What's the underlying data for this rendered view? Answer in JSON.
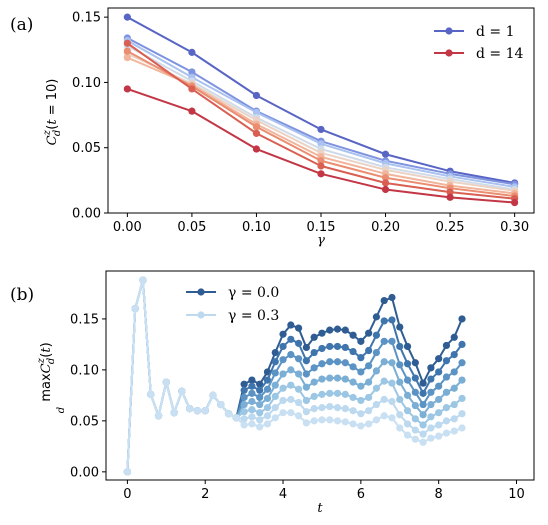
{
  "chart_data": [
    {
      "type": "line",
      "panel_label": "(a)",
      "xlabel": "γ",
      "ylabel": "C^z_d(t = 10)",
      "xlim": [
        -0.015,
        0.315
      ],
      "ylim": [
        0.0,
        0.157
      ],
      "x_ticks": [
        "0.00",
        "0.05",
        "0.10",
        "0.15",
        "0.20",
        "0.25",
        "0.30"
      ],
      "y_ticks": [
        "0.00",
        "0.05",
        "0.10",
        "0.15"
      ],
      "x": [
        0.0,
        0.05,
        0.1,
        0.15,
        0.2,
        0.25,
        0.3
      ],
      "legend": {
        "placement": "top-right",
        "entries": [
          "d = 1",
          "d = 14"
        ]
      },
      "colormap": [
        "#5865c4",
        "#7f93e0",
        "#a9c2f0",
        "#d0dbea",
        "#ead3c5",
        "#f2b49a",
        "#ea8d70",
        "#d85f52",
        "#c23645"
      ],
      "series": [
        {
          "name": "d = 1",
          "values": [
            0.15,
            0.123,
            0.09,
            0.064,
            0.045,
            0.032,
            0.023
          ]
        },
        {
          "values": [
            0.134,
            0.108,
            0.078,
            0.055,
            0.04,
            0.03,
            0.022
          ]
        },
        {
          "values": [
            0.132,
            0.104,
            0.077,
            0.053,
            0.038,
            0.028,
            0.02
          ]
        },
        {
          "values": [
            0.128,
            0.101,
            0.073,
            0.049,
            0.035,
            0.026,
            0.018
          ]
        },
        {
          "values": [
            0.122,
            0.099,
            0.071,
            0.046,
            0.033,
            0.024,
            0.017
          ]
        },
        {
          "values": [
            0.119,
            0.098,
            0.068,
            0.043,
            0.03,
            0.021,
            0.015
          ]
        },
        {
          "values": [
            0.124,
            0.097,
            0.066,
            0.04,
            0.027,
            0.019,
            0.013
          ]
        },
        {
          "values": [
            0.13,
            0.095,
            0.061,
            0.036,
            0.023,
            0.016,
            0.011
          ]
        },
        {
          "name": "d = 14",
          "values": [
            0.095,
            0.078,
            0.049,
            0.03,
            0.018,
            0.012,
            0.008
          ]
        }
      ]
    },
    {
      "type": "line",
      "panel_label": "(b)",
      "xlabel": "t",
      "ylabel": "max_d C^z_d(t)",
      "xlim": [
        -0.55,
        10.45
      ],
      "ylim": [
        -0.008,
        0.197
      ],
      "x_ticks": [
        "0",
        "2",
        "4",
        "6",
        "8",
        "10"
      ],
      "y_ticks": [
        "0.00",
        "0.05",
        "0.10",
        "0.15"
      ],
      "legend": {
        "placement": "top-left",
        "entries": [
          "γ = 0.0",
          "γ = 0.3"
        ]
      },
      "colormap": [
        "#2f5c92",
        "#3f75ad",
        "#5a93c4",
        "#7aaed4",
        "#9cc7e4",
        "#bcd9ef",
        "#c9e0f3"
      ],
      "t_start": 0.0,
      "t_step": 0.2,
      "early_values": [
        0.0,
        0.16,
        0.188,
        0.076,
        0.055,
        0.088,
        0.058,
        0.079,
        0.062,
        0.06,
        0.06,
        0.075,
        0.066,
        0.057,
        0.053
      ],
      "series": [
        {
          "name": "γ = 0.0",
          "late_values": [
            0.086,
            0.09,
            0.086,
            0.098,
            0.117,
            0.135,
            0.144,
            0.141,
            0.122,
            0.132,
            0.136,
            0.139,
            0.14,
            0.139,
            0.134,
            0.128,
            0.136,
            0.152,
            0.168,
            0.171,
            0.142,
            0.123,
            0.107,
            0.087,
            0.102,
            0.111,
            0.124,
            0.132,
            0.15
          ]
        },
        {
          "late_values": [
            0.08,
            0.084,
            0.08,
            0.09,
            0.108,
            0.123,
            0.13,
            0.126,
            0.109,
            0.117,
            0.121,
            0.123,
            0.123,
            0.122,
            0.118,
            0.112,
            0.119,
            0.134,
            0.148,
            0.149,
            0.123,
            0.106,
            0.092,
            0.077,
            0.091,
            0.098,
            0.109,
            0.115,
            0.125
          ]
        },
        {
          "late_values": [
            0.073,
            0.077,
            0.073,
            0.081,
            0.097,
            0.11,
            0.115,
            0.111,
            0.096,
            0.102,
            0.106,
            0.108,
            0.108,
            0.107,
            0.103,
            0.098,
            0.104,
            0.117,
            0.128,
            0.128,
            0.105,
            0.09,
            0.078,
            0.066,
            0.078,
            0.084,
            0.093,
            0.098,
            0.107
          ]
        },
        {
          "late_values": [
            0.066,
            0.069,
            0.066,
            0.072,
            0.085,
            0.096,
            0.1,
            0.096,
            0.083,
            0.088,
            0.091,
            0.092,
            0.092,
            0.091,
            0.088,
            0.084,
            0.088,
            0.099,
            0.108,
            0.107,
            0.088,
            0.075,
            0.065,
            0.056,
            0.066,
            0.071,
            0.078,
            0.082,
            0.09
          ]
        },
        {
          "late_values": [
            0.059,
            0.061,
            0.058,
            0.063,
            0.074,
            0.082,
            0.085,
            0.081,
            0.07,
            0.074,
            0.076,
            0.077,
            0.077,
            0.076,
            0.073,
            0.07,
            0.073,
            0.082,
            0.089,
            0.087,
            0.071,
            0.06,
            0.052,
            0.046,
            0.054,
            0.058,
            0.063,
            0.066,
            0.072
          ]
        },
        {
          "late_values": [
            0.052,
            0.054,
            0.051,
            0.055,
            0.063,
            0.07,
            0.071,
            0.068,
            0.059,
            0.062,
            0.063,
            0.064,
            0.063,
            0.062,
            0.06,
            0.057,
            0.06,
            0.066,
            0.071,
            0.069,
            0.056,
            0.047,
            0.041,
            0.037,
            0.043,
            0.046,
            0.05,
            0.052,
            0.057
          ]
        },
        {
          "name": "γ = 0.3",
          "late_values": [
            0.046,
            0.047,
            0.044,
            0.047,
            0.053,
            0.058,
            0.058,
            0.055,
            0.048,
            0.05,
            0.051,
            0.051,
            0.05,
            0.049,
            0.047,
            0.045,
            0.047,
            0.051,
            0.055,
            0.053,
            0.043,
            0.036,
            0.032,
            0.029,
            0.033,
            0.035,
            0.038,
            0.04,
            0.043
          ]
        }
      ]
    }
  ]
}
